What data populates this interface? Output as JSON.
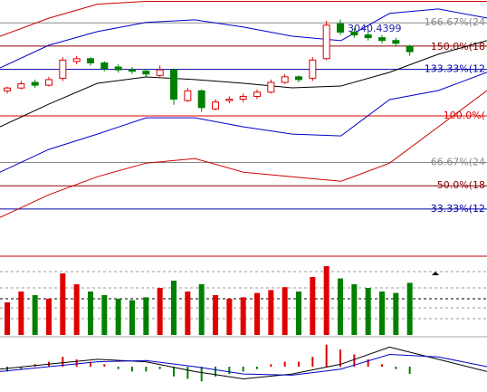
{
  "chart_data": {
    "type": "candlestick",
    "ylim": [
      8,
      183
    ],
    "annotation": "3040.4399",
    "levels": [
      {
        "value": 166.67,
        "label": "166.67%(24",
        "color": "#888888"
      },
      {
        "value": 150,
        "label": "150.0%(18",
        "color": "#8b0000"
      },
      {
        "value": 133.33,
        "label": "133.33%(12",
        "color": "#0000aa"
      },
      {
        "value": 100,
        "label": "100.0%(",
        "color": "#dd0000"
      },
      {
        "value": 66.67,
        "label": "66.67%(24",
        "color": "#888888"
      },
      {
        "value": 50,
        "label": "50.0%(18",
        "color": "#8b0000"
      },
      {
        "value": 33.33,
        "label": "33.33%(12",
        "color": "#0000aa"
      }
    ],
    "up_color": "#e00000",
    "down_color": "#008000",
    "candles": [
      {
        "o": 118,
        "h": 121,
        "l": 116,
        "c": 120
      },
      {
        "o": 120,
        "h": 125,
        "l": 119,
        "c": 123
      },
      {
        "o": 124,
        "h": 126,
        "l": 120,
        "c": 122
      },
      {
        "o": 122,
        "h": 128,
        "l": 121,
        "c": 126
      },
      {
        "o": 127,
        "h": 142,
        "l": 125,
        "c": 140
      },
      {
        "o": 139,
        "h": 143,
        "l": 137,
        "c": 141
      },
      {
        "o": 141,
        "h": 142,
        "l": 136,
        "c": 138
      },
      {
        "o": 138,
        "h": 139,
        "l": 132,
        "c": 134
      },
      {
        "o": 135,
        "h": 137,
        "l": 131,
        "c": 133
      },
      {
        "o": 133,
        "h": 135,
        "l": 130,
        "c": 132
      },
      {
        "o": 132,
        "h": 133,
        "l": 128,
        "c": 130
      },
      {
        "o": 129,
        "h": 136,
        "l": 128,
        "c": 133
      },
      {
        "o": 133,
        "h": 134,
        "l": 108,
        "c": 112
      },
      {
        "o": 111,
        "h": 120,
        "l": 110,
        "c": 118
      },
      {
        "o": 118,
        "h": 119,
        "l": 103,
        "c": 106
      },
      {
        "o": 105,
        "h": 112,
        "l": 104,
        "c": 110
      },
      {
        "o": 111,
        "h": 114,
        "l": 109,
        "c": 112
      },
      {
        "o": 112,
        "h": 116,
        "l": 110,
        "c": 114
      },
      {
        "o": 114,
        "h": 119,
        "l": 112,
        "c": 117
      },
      {
        "o": 117,
        "h": 126,
        "l": 116,
        "c": 124
      },
      {
        "o": 124,
        "h": 130,
        "l": 123,
        "c": 128
      },
      {
        "o": 128,
        "h": 129,
        "l": 124,
        "c": 126
      },
      {
        "o": 127,
        "h": 142,
        "l": 125,
        "c": 140
      },
      {
        "o": 141,
        "h": 168,
        "l": 140,
        "c": 165
      },
      {
        "o": 166,
        "h": 169,
        "l": 158,
        "c": 160
      },
      {
        "o": 160,
        "h": 163,
        "l": 156,
        "c": 158
      },
      {
        "o": 158,
        "h": 161,
        "l": 154,
        "c": 156
      },
      {
        "o": 156,
        "h": 158,
        "l": 152,
        "c": 154
      },
      {
        "o": 154,
        "h": 156,
        "l": 150,
        "c": 152
      },
      {
        "o": 150,
        "h": 151,
        "l": 143,
        "c": 146
      }
    ],
    "lines": [
      {
        "color": "#000000",
        "values": [
          92.2,
          108.4,
          123.4,
          127.9,
          126,
          123.4,
          120.1,
          121.4,
          131.2,
          144.2,
          153.9
        ]
      },
      {
        "color": "#0000cc",
        "values": [
          134.4,
          150.6,
          160.4,
          166.9,
          168.8,
          163.6,
          157.1,
          153.9,
          173.4,
          176.6,
          170.1
        ]
      },
      {
        "color": "#0000cc",
        "values": [
          59.7,
          76,
          87,
          98.7,
          98.7,
          92.2,
          87,
          85.7,
          111.7,
          118.2,
          131.2
        ]
      },
      {
        "color": "#cc0000",
        "values": [
          157,
          170,
          180,
          182,
          182,
          182,
          182,
          182,
          182,
          182,
          182
        ]
      },
      {
        "color": "#cc0000",
        "values": [
          27.3,
          43.5,
          56.5,
          66.2,
          69.5,
          59.7,
          56.5,
          53.2,
          66.2,
          92.2,
          118.2
        ]
      }
    ],
    "volume": {
      "ylim": [
        0,
        100
      ],
      "values": [
        45,
        60,
        55,
        50,
        85,
        70,
        60,
        55,
        50,
        48,
        52,
        65,
        75,
        60,
        70,
        55,
        50,
        52,
        58,
        62,
        66,
        60,
        80,
        95,
        78,
        70,
        65,
        60,
        58,
        72
      ]
    },
    "macd": {
      "ylim": [
        -10,
        10
      ],
      "hist": [
        -2,
        -1,
        1,
        2,
        4,
        3,
        2,
        1,
        -1,
        -2,
        -2,
        -1,
        -4,
        -5,
        -6,
        -4,
        -3,
        -2,
        -1,
        1,
        2,
        2,
        4,
        9,
        7,
        5,
        3,
        1,
        -1,
        -3
      ],
      "lines": [
        {
          "color": "#000000",
          "values": [
            -1,
            1,
            3,
            2,
            -2,
            -5,
            -3,
            1,
            8,
            3,
            -2
          ]
        },
        {
          "color": "#0000cc",
          "values": [
            -2,
            0,
            2,
            2.5,
            0,
            -3,
            -3.5,
            -1,
            5,
            4,
            0
          ]
        }
      ]
    }
  }
}
